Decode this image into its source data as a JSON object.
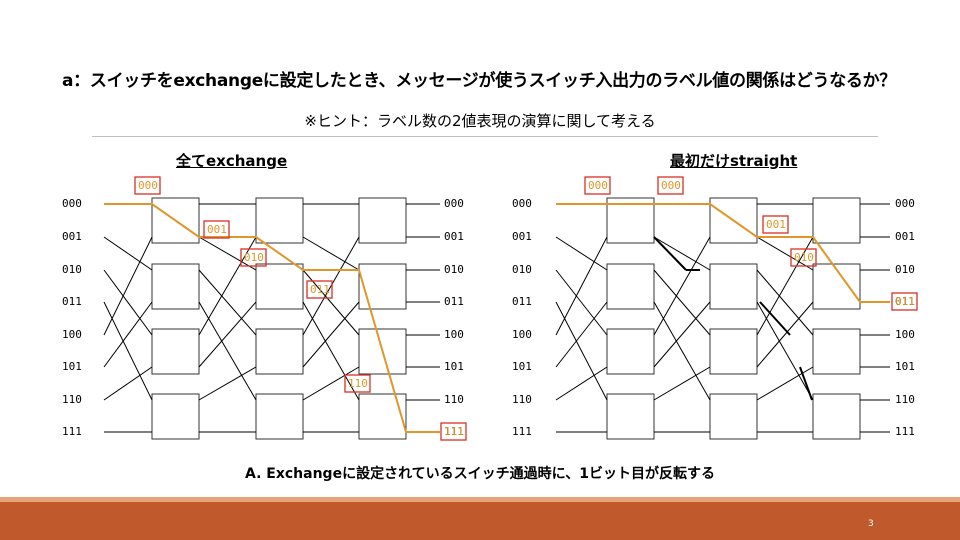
{
  "title": "a：スイッチをexchangeに設定したとき、メッセージが使うスイッチ入出力のラベル値の関係はどうなるか？",
  "hint": "※ヒント：ラベル数の2値表現の演算に関して考える",
  "left_subtitle": "全てexchange",
  "right_subtitle": "最初だけstraight",
  "port_labels": [
    "000",
    "001",
    "010",
    "011",
    "100",
    "101",
    "110",
    "111"
  ],
  "left_path_labels": [
    "000",
    "001",
    "010",
    "011",
    "110",
    "111"
  ],
  "right_path_labels": [
    "000",
    "000",
    "001",
    "010",
    "011"
  ],
  "answer": "A. Exchangeに設定されているスイッチ通過時に、1ビット目が反転する",
  "page_number": "3",
  "colors": {
    "path": "#e0962a",
    "highlight_box": "#d93025",
    "footer": "#c0592b",
    "footer_line": "#e8a27c",
    "wire": "#000000"
  }
}
